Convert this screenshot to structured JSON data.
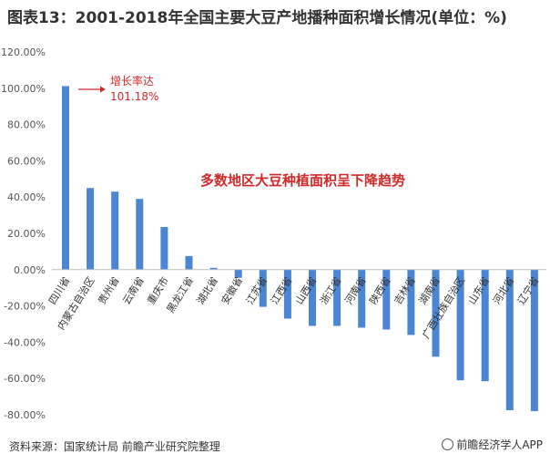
{
  "title": "图表13：2001-2018年全国主要大豆产地播种面积增长情况(单位：%)",
  "source": "资料来源：国家统计局 前瞻产业研究院整理",
  "logo_text": "前瞻经济学人APP",
  "colors": {
    "bar": "#4a86d4",
    "annotation": "#d02a2a",
    "zero_line": "#bfbfbf"
  },
  "chart_data": {
    "type": "bar",
    "categories": [
      "四川省",
      "内蒙古自治区",
      "贵州省",
      "云南省",
      "重庆市",
      "黑龙江省",
      "湖北省",
      "安徽省",
      "江苏省",
      "江西省",
      "山西省",
      "浙江省",
      "河南省",
      "陕西省",
      "吉林省",
      "湖南省",
      "广西壮族自治区",
      "山东省",
      "河北省",
      "辽宁省"
    ],
    "values": [
      101.18,
      45.0,
      43.0,
      39.0,
      23.5,
      7.5,
      1.0,
      -4.5,
      -20.5,
      -27.0,
      -31.0,
      -31.0,
      -32.0,
      -33.0,
      -36.0,
      -48.0,
      -61.0,
      -61.5,
      -77.5,
      -78.0
    ],
    "ylim": [
      -80,
      120
    ],
    "yticks": [
      "-80.00%",
      "-60.00%",
      "-40.00%",
      "-20.00%",
      "0.00%",
      "20.00%",
      "40.00%",
      "60.00%",
      "80.00%",
      "100.00%",
      "120.00%"
    ],
    "ytick_values": [
      -80,
      -60,
      -40,
      -20,
      0,
      20,
      40,
      60,
      80,
      100,
      120
    ],
    "grid": false,
    "annotation": {
      "line1": "增长率达",
      "line2": "101.18%"
    },
    "note": "多数地区大豆种植面积呈下降趋势"
  }
}
